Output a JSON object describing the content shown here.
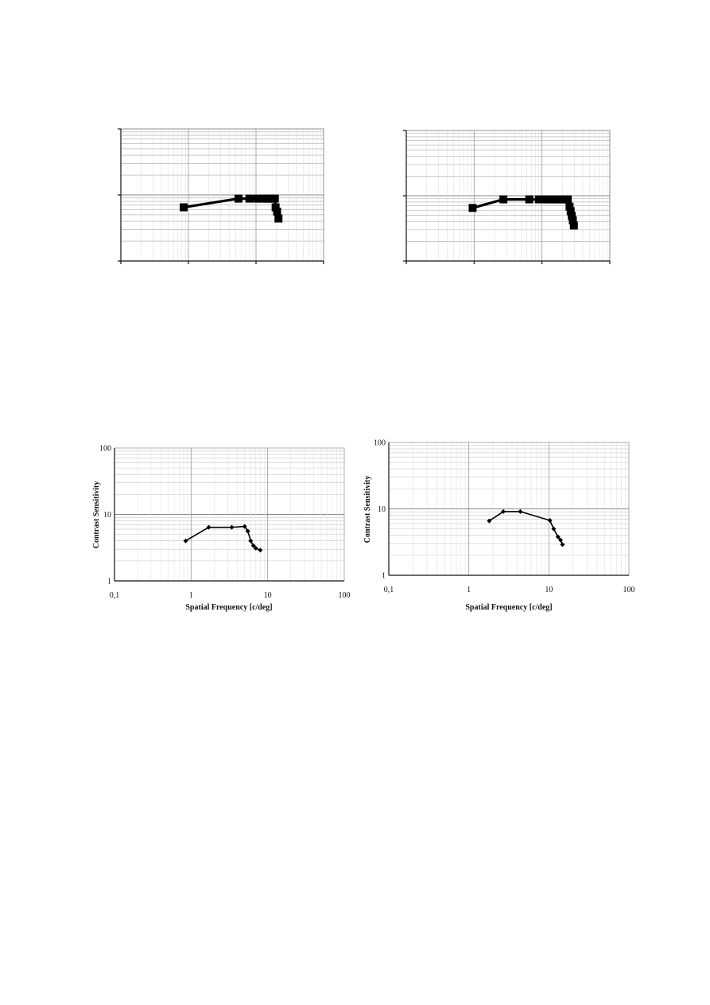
{
  "chart_data": [
    {
      "type": "line",
      "title": "",
      "xlabel": "",
      "ylabel": "",
      "x_scale": "log",
      "y_scale": "log",
      "xlim": [
        0.1,
        100
      ],
      "ylim": [
        1,
        100
      ],
      "x_tick_labels": [],
      "y_tick_labels": [],
      "grid": true,
      "marker": "square",
      "series": [
        {
          "x": [
            0.85,
            5.5,
            8.0,
            10.5,
            12.5,
            14.5,
            16.0,
            17.5,
            19.0,
            19.5,
            20.5,
            21.5
          ],
          "y": [
            6.5,
            8.8,
            8.8,
            8.8,
            8.8,
            8.8,
            8.8,
            8.8,
            8.8,
            6.5,
            5.6,
            4.4
          ]
        }
      ]
    },
    {
      "type": "line",
      "title": "",
      "xlabel": "",
      "ylabel": "",
      "x_scale": "log",
      "y_scale": "log",
      "xlim": [
        0.1,
        100
      ],
      "ylim": [
        1,
        100
      ],
      "x_tick_labels": [],
      "y_tick_labels": [],
      "grid": true,
      "marker": "square",
      "series": [
        {
          "x": [
            0.95,
            2.7,
            6.5,
            9.0,
            10.5,
            12.0,
            13.5,
            15.0,
            16.5,
            18.0,
            19.5,
            21.0,
            22.5,
            24.0,
            25.5,
            26.5,
            27.5,
            28.5,
            29.5
          ],
          "y": [
            6.5,
            8.8,
            8.8,
            8.8,
            8.8,
            8.8,
            8.8,
            8.8,
            8.8,
            8.8,
            8.8,
            8.8,
            8.8,
            8.8,
            6.8,
            5.8,
            4.9,
            4.2,
            3.5
          ]
        }
      ]
    },
    {
      "type": "line",
      "title": "",
      "xlabel": "Spatial Frequency [c/deg]",
      "ylabel": "Contrast Sensitivity",
      "x_scale": "log",
      "y_scale": "log",
      "xlim": [
        0.1,
        100
      ],
      "ylim": [
        1,
        100
      ],
      "x_tick_labels": [
        "0,1",
        "1",
        "10",
        "100"
      ],
      "y_tick_labels": [
        "1",
        "10",
        "100"
      ],
      "grid": true,
      "marker": "diamond",
      "series": [
        {
          "x": [
            0.85,
            1.7,
            3.4,
            5.0,
            5.5,
            6.0,
            6.5,
            7.0,
            8.0
          ],
          "y": [
            4.0,
            6.4,
            6.4,
            6.6,
            5.6,
            4.0,
            3.4,
            3.1,
            2.9
          ]
        }
      ]
    },
    {
      "type": "line",
      "title": "",
      "xlabel": "Spatial Frequency [c/deg]",
      "ylabel": "Contrast Sensitivity",
      "x_scale": "log",
      "y_scale": "log",
      "xlim": [
        0.1,
        100
      ],
      "ylim": [
        1,
        100
      ],
      "x_tick_labels": [
        "0,1",
        "1",
        "10",
        "100"
      ],
      "y_tick_labels": [
        "1",
        "10",
        "100"
      ],
      "grid": true,
      "marker": "diamond",
      "series": [
        {
          "x": [
            1.8,
            2.7,
            4.4,
            10.3,
            11.5,
            13.0,
            14.0,
            14.8
          ],
          "y": [
            6.6,
            9.1,
            9.1,
            6.7,
            5.0,
            3.8,
            3.4,
            2.9
          ]
        }
      ]
    }
  ]
}
